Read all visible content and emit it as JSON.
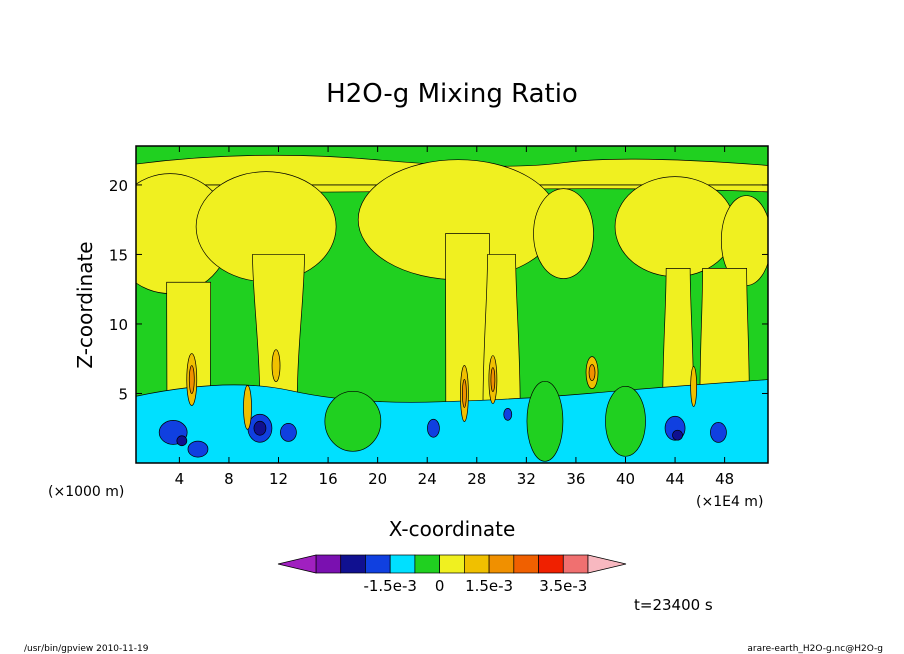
{
  "chart_data": {
    "type": "heatmap",
    "title": "H2O-g Mixing Ratio",
    "xlabel": "X-coordinate",
    "ylabel": "Z-coordinate",
    "x_unit_left": "(×1000 m)",
    "x_unit_right": "(×1E4 m)",
    "x_ticks": [
      4,
      8,
      12,
      16,
      20,
      24,
      28,
      32,
      36,
      40,
      44,
      48
    ],
    "y_ticks": [
      5,
      10,
      15,
      20
    ],
    "xlim": [
      0.5,
      51.5
    ],
    "ylim": [
      0,
      22.8
    ],
    "time_label": "t=23400 s",
    "colorbar": {
      "tick_labels": [
        "-1.5e-3",
        "0",
        "1.5e-3",
        "3.5e-3"
      ],
      "colors": [
        "#a020c0",
        "#7a10b0",
        "#101090",
        "#1040e0",
        "#00e0ff",
        "#20d020",
        "#f0f020",
        "#f0c000",
        "#f09000",
        "#f06000",
        "#f02000",
        "#f07070",
        "#f8b8c0"
      ]
    },
    "fields": {
      "background": "#20d020",
      "positive_1": "#f0f020",
      "positive_2": "#f0c000",
      "positive_3": "#f09000",
      "negative_1": "#00e0ff",
      "negative_2": "#1040e0",
      "negative_3": "#101090"
    }
  },
  "footer": {
    "left": "/usr/bin/gpview   2010-11-19",
    "right": "arare-earth_H2O-g.nc@H2O-g"
  }
}
